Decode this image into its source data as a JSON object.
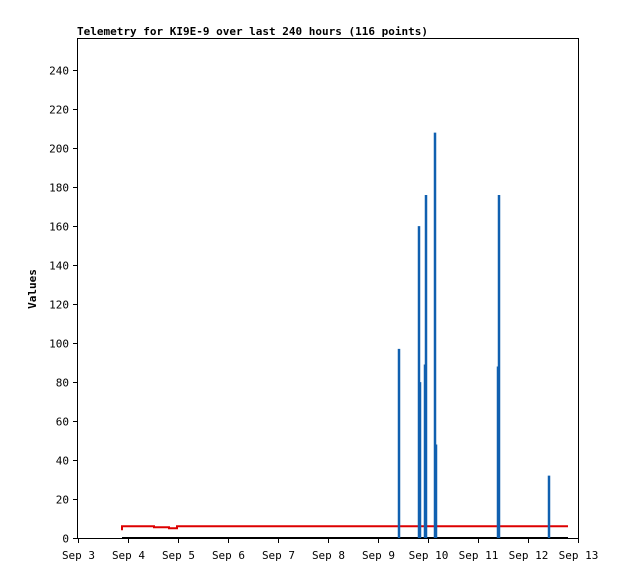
{
  "chart_data": {
    "type": "line",
    "title": "Telemetry for KI9E-9 over last 240 hours (116 points)",
    "xlabel": "",
    "ylabel": "Values",
    "x_ticks": [
      "Sep 3",
      "Sep 4",
      "Sep 5",
      "Sep 6",
      "Sep 7",
      "Sep 8",
      "Sep 9",
      "Sep 10",
      "Sep 11",
      "Sep 12",
      "Sep 13"
    ],
    "y_ticks": [
      0,
      20,
      40,
      60,
      80,
      100,
      120,
      140,
      160,
      180,
      200,
      220,
      240
    ],
    "xlim": [
      0,
      10
    ],
    "ylim": [
      0,
      256
    ],
    "grid": false,
    "series": [
      {
        "color": "#dd0000",
        "style": "step",
        "points": [
          [
            0.88,
            4
          ],
          [
            0.88,
            6
          ],
          [
            1.52,
            6
          ],
          [
            1.52,
            5.5
          ],
          [
            1.82,
            5.5
          ],
          [
            1.82,
            5
          ],
          [
            1.98,
            5
          ],
          [
            1.98,
            6
          ],
          [
            9.8,
            6
          ]
        ]
      },
      {
        "color": "#000000",
        "style": "line",
        "points": [
          [
            0.88,
            0
          ],
          [
            9.8,
            0
          ]
        ]
      },
      {
        "color": "#1060b0",
        "style": "spikes",
        "points": [
          [
            6.42,
            97
          ],
          [
            6.82,
            160
          ],
          [
            6.84,
            80
          ],
          [
            6.93,
            89
          ],
          [
            6.95,
            176
          ],
          [
            7.13,
            208
          ],
          [
            7.15,
            48
          ],
          [
            8.4,
            88
          ],
          [
            8.42,
            176
          ],
          [
            9.42,
            32
          ]
        ]
      }
    ]
  }
}
